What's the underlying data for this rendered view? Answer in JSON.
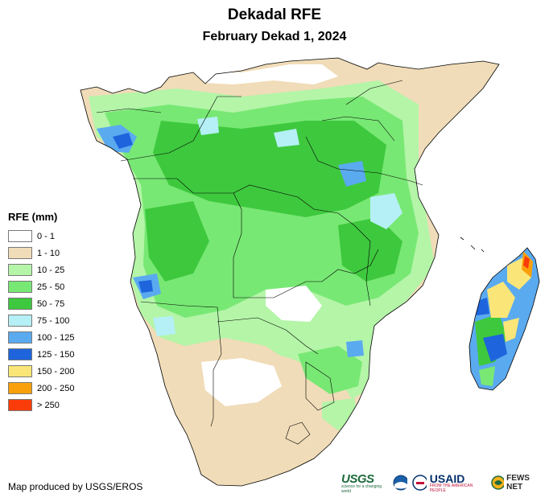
{
  "title": "Dekadal RFE",
  "subtitle": "February Dekad 1, 2024",
  "legend": {
    "title": "RFE (mm)",
    "items": [
      {
        "label": "0 - 1",
        "color": "#ffffff"
      },
      {
        "label": "1 - 10",
        "color": "#f0dcb8"
      },
      {
        "label": "10 - 25",
        "color": "#b4f5a8"
      },
      {
        "label": "25 - 50",
        "color": "#78e874"
      },
      {
        "label": "50 - 75",
        "color": "#3ec83e"
      },
      {
        "label": "75 - 100",
        "color": "#b4f0f5"
      },
      {
        "label": "100 - 125",
        "color": "#5aaaf0"
      },
      {
        "label": "125 - 150",
        "color": "#1e64dc"
      },
      {
        "label": "150 - 200",
        "color": "#fae678"
      },
      {
        "label": "200 - 250",
        "color": "#faa00a"
      },
      {
        "label": "> 250",
        "color": "#fa3c0a"
      }
    ]
  },
  "credit": "Map produced by USGS/EROS",
  "logos": {
    "usgs": "USGS",
    "usgs_tagline": "science for a changing world",
    "usaid": "USAID",
    "usaid_tagline": "FROM THE AMERICAN PEOPLE",
    "fews": "FEWS NET"
  }
}
